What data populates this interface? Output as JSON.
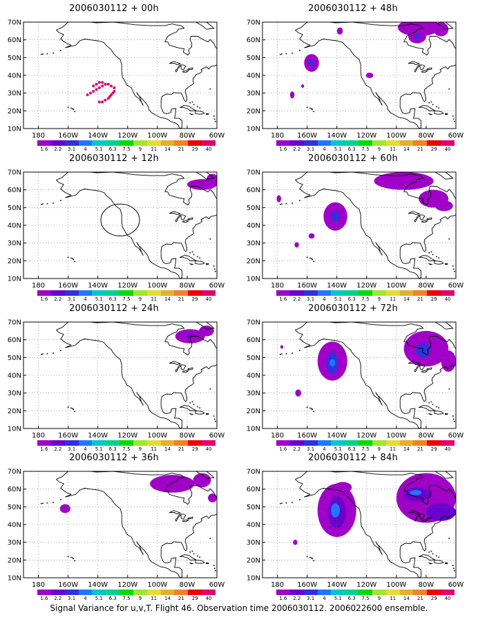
{
  "colors": {
    "frame": "#000000",
    "grid": "#666666",
    "coast": "#000000",
    "circle": "#000000"
  },
  "colorbar": {
    "labels": [
      "1.6",
      "2.2",
      "3.1",
      "4",
      "5.1",
      "6.3",
      "7.5",
      "9",
      "11",
      "14",
      "21",
      "29",
      "40"
    ],
    "colors": [
      "#a000c8",
      "#6a00d0",
      "#3030e0",
      "#1e78ff",
      "#00c8c8",
      "#00d28c",
      "#00dc00",
      "#a0e632",
      "#e6dc32",
      "#e6af2d",
      "#f08228",
      "#f00000",
      "#e0006e"
    ]
  },
  "axes": {
    "lat_labels": [
      "10N",
      "20N",
      "30N",
      "40N",
      "50N",
      "60N",
      "70N"
    ],
    "lon_labels": [
      "180",
      "160W",
      "140W",
      "120W",
      "100W",
      "80W",
      "60W"
    ]
  },
  "panels": [
    {
      "title": "2006030112 + 00h",
      "features": [
        {
          "type": "dots",
          "points": [
            [
              -147,
              29
            ],
            [
              -145,
              30
            ],
            [
              -143,
              31
            ],
            [
              -141,
              32
            ],
            [
              -139,
              33
            ],
            [
              -137,
              34
            ],
            [
              -135,
              35
            ],
            [
              -133,
              35
            ],
            [
              -131,
              34
            ],
            [
              -129,
              33
            ],
            [
              -129,
              31
            ],
            [
              -131,
              29
            ],
            [
              -133,
              27
            ],
            [
              -135,
              26
            ],
            [
              -137,
              25
            ],
            [
              -139,
              25
            ],
            [
              -143,
              34
            ],
            [
              -141,
              35
            ],
            [
              -139,
              36
            ],
            [
              -137,
              36
            ],
            [
              -135,
              35
            ],
            [
              -130,
              30
            ],
            [
              -132,
              28
            ]
          ],
          "color": "#e0006e"
        }
      ]
    },
    {
      "title": "2006030112 + 48h",
      "features": [
        {
          "type": "blob",
          "c": [
            -157,
            47
          ],
          "r": [
            5,
            5
          ],
          "color": "#a000c8"
        },
        {
          "type": "blob",
          "c": [
            -157,
            47
          ],
          "r": [
            2,
            2
          ],
          "color": "#3030e0"
        },
        {
          "type": "blob",
          "c": [
            -170,
            29
          ],
          "r": [
            1.5,
            2
          ],
          "color": "#a000c8"
        },
        {
          "type": "blob",
          "c": [
            -163,
            34
          ],
          "r": [
            1,
            1
          ],
          "color": "#a000c8"
        },
        {
          "type": "blob",
          "c": [
            -138,
            65
          ],
          "r": [
            2,
            2
          ],
          "color": "#a000c8"
        },
        {
          "type": "blob",
          "c": [
            -118,
            40
          ],
          "r": [
            2.5,
            1.5
          ],
          "color": "#a000c8"
        },
        {
          "type": "blob",
          "c": [
            -85,
            67
          ],
          "r": [
            14,
            5
          ],
          "color": "#a000c8"
        },
        {
          "type": "blob",
          "c": [
            -86,
            62
          ],
          "r": [
            6,
            4
          ],
          "color": "#a000c8"
        },
        {
          "type": "blob",
          "c": [
            -70,
            66
          ],
          "r": [
            5,
            4
          ],
          "color": "#a000c8"
        },
        {
          "type": "blob",
          "c": [
            -86,
            62
          ],
          "r": [
            2,
            1.5
          ],
          "color": "#3030e0"
        }
      ]
    },
    {
      "title": "2006030112 + 12h",
      "features": [
        {
          "type": "blob",
          "c": [
            -70,
            63
          ],
          "r": [
            10,
            3
          ],
          "color": "#a000c8"
        },
        {
          "type": "blob",
          "c": [
            -63,
            66
          ],
          "r": [
            4,
            3
          ],
          "color": "#a000c8"
        },
        {
          "type": "circle",
          "c": [
            -125,
            43
          ],
          "r": [
            6.5,
            9
          ]
        }
      ]
    },
    {
      "title": "2006030112 + 60h",
      "features": [
        {
          "type": "blob",
          "c": [
            -141,
            45
          ],
          "r": [
            8,
            8
          ],
          "color": "#a000c8"
        },
        {
          "type": "blob",
          "c": [
            -141,
            45
          ],
          "r": [
            3,
            3
          ],
          "color": "#3030e0"
        },
        {
          "type": "blob",
          "c": [
            -157,
            34
          ],
          "r": [
            2,
            1.5
          ],
          "color": "#a000c8"
        },
        {
          "type": "blob",
          "c": [
            -167,
            29
          ],
          "r": [
            1.5,
            1.5
          ],
          "color": "#a000c8"
        },
        {
          "type": "blob",
          "c": [
            -179,
            55
          ],
          "r": [
            1.5,
            2
          ],
          "color": "#a000c8"
        },
        {
          "type": "blob",
          "c": [
            -95,
            65
          ],
          "r": [
            20,
            5
          ],
          "color": "#a000c8"
        },
        {
          "type": "blob",
          "c": [
            -75,
            55
          ],
          "r": [
            10,
            5
          ],
          "color": "#a000c8"
        },
        {
          "type": "blob",
          "c": [
            -68,
            51
          ],
          "r": [
            6,
            3
          ],
          "color": "#a000c8"
        }
      ]
    },
    {
      "title": "2006030112 + 24h",
      "features": [
        {
          "type": "blob",
          "c": [
            -78,
            62
          ],
          "r": [
            10,
            4
          ],
          "color": "#a000c8"
        },
        {
          "type": "blob",
          "c": [
            -67,
            65
          ],
          "r": [
            5,
            3
          ],
          "color": "#a000c8"
        },
        {
          "type": "blob",
          "c": [
            -78,
            62
          ],
          "r": [
            2,
            1.5
          ],
          "color": "#6a00d0"
        }
      ]
    },
    {
      "title": "2006030112 + 72h",
      "features": [
        {
          "type": "blob",
          "c": [
            -143,
            48
          ],
          "r": [
            10,
            11
          ],
          "color": "#a000c8"
        },
        {
          "type": "blob",
          "c": [
            -143,
            47
          ],
          "r": [
            4,
            6
          ],
          "color": "#3030e0"
        },
        {
          "type": "blob",
          "c": [
            -143,
            47
          ],
          "r": [
            2,
            2
          ],
          "color": "#1e78ff"
        },
        {
          "type": "blob",
          "c": [
            -166,
            30
          ],
          "r": [
            2,
            2
          ],
          "color": "#a000c8"
        },
        {
          "type": "blob",
          "c": [
            -177,
            56
          ],
          "r": [
            1,
            1
          ],
          "color": "#a000c8"
        },
        {
          "type": "blob",
          "c": [
            -80,
            55
          ],
          "r": [
            15,
            10
          ],
          "color": "#a000c8"
        },
        {
          "type": "blob",
          "c": [
            -65,
            48
          ],
          "r": [
            5,
            6
          ],
          "color": "#a000c8"
        },
        {
          "type": "blob",
          "c": [
            -82,
            54
          ],
          "r": [
            5,
            4
          ],
          "color": "#3030e0"
        }
      ]
    },
    {
      "title": "2006030112 + 36h",
      "features": [
        {
          "type": "blob",
          "c": [
            -162,
            49
          ],
          "r": [
            3.5,
            2.5
          ],
          "color": "#a000c8"
        },
        {
          "type": "blob",
          "c": [
            -90,
            63
          ],
          "r": [
            15,
            5
          ],
          "color": "#a000c8"
        },
        {
          "type": "blob",
          "c": [
            -70,
            65
          ],
          "r": [
            6,
            4
          ],
          "color": "#a000c8"
        },
        {
          "type": "blob",
          "c": [
            -63,
            55
          ],
          "r": [
            3,
            2.5
          ],
          "color": "#a000c8"
        }
      ]
    },
    {
      "title": "2006030112 + 84h",
      "features": [
        {
          "type": "blob",
          "c": [
            -140,
            48
          ],
          "r": [
            13,
            15
          ],
          "color": "#a000c8"
        },
        {
          "type": "blob",
          "c": [
            -140,
            47
          ],
          "r": [
            6,
            9
          ],
          "color": "#6a00d0"
        },
        {
          "type": "blob",
          "c": [
            -141,
            48
          ],
          "r": [
            3,
            4
          ],
          "color": "#1e78ff"
        },
        {
          "type": "blob",
          "c": [
            -136,
            61
          ],
          "r": [
            6,
            3
          ],
          "color": "#a000c8"
        },
        {
          "type": "blob",
          "c": [
            -168,
            30
          ],
          "r": [
            1.5,
            1.5
          ],
          "color": "#a000c8"
        },
        {
          "type": "blob",
          "c": [
            -80,
            55
          ],
          "r": [
            20,
            14
          ],
          "color": "#a000c8"
        },
        {
          "type": "blob",
          "c": [
            -86,
            57
          ],
          "r": [
            9,
            4
          ],
          "color": "#6a00d0"
        },
        {
          "type": "blob",
          "c": [
            -87,
            58
          ],
          "r": [
            4,
            1.5
          ],
          "color": "#1e78ff"
        },
        {
          "type": "blob",
          "c": [
            -70,
            47
          ],
          "r": [
            10,
            5
          ],
          "color": "#6a00d0"
        }
      ]
    }
  ],
  "footer": "Signal Variance for u,v,T. Flight 46. Observation time 2006030112. 2006022600 ensemble."
}
